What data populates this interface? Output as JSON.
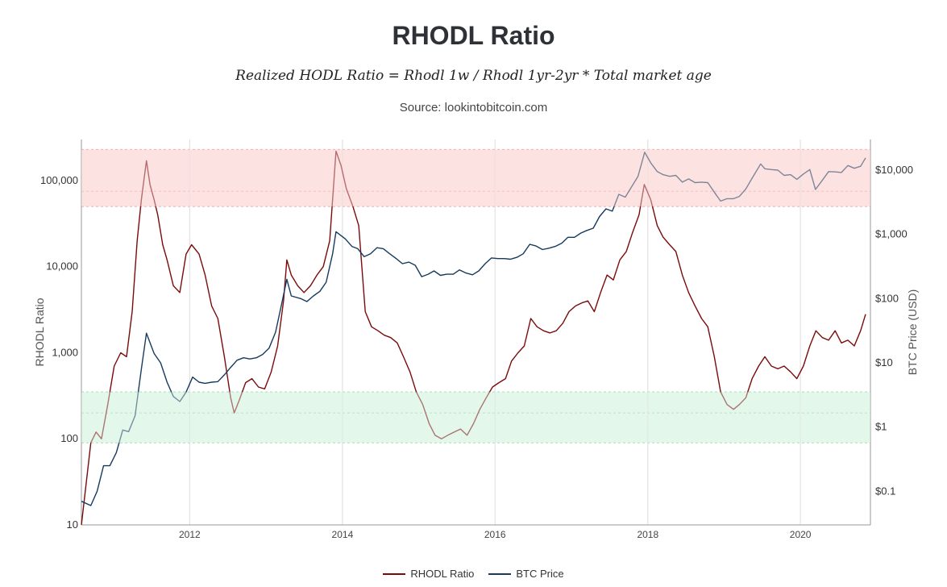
{
  "page": {
    "title": "RHODL Ratio",
    "subtitle": "Realized HODL Ratio = Rhodl 1w / Rhodl 1yr-2yr * Total market age",
    "source": "Source: lookintobitcoin.com"
  },
  "colors": {
    "rhodl": "#7a0b0b",
    "btc": "#173a5e",
    "red_band": "#fde2e2",
    "green_band": "#e4f7ec",
    "grid": "#dcdcdc"
  },
  "chart_data": {
    "type": "line",
    "x_range": [
      "2010-08-01",
      "2020-12-01"
    ],
    "x_ticks": [
      {
        "date": "2012-01-01",
        "label": "2012"
      },
      {
        "date": "2014-01-01",
        "label": "2014"
      },
      {
        "date": "2016-01-01",
        "label": "2016"
      },
      {
        "date": "2018-01-01",
        "label": "2018"
      },
      {
        "date": "2020-01-01",
        "label": "2020"
      }
    ],
    "y_left": {
      "label": "RHODL Ratio",
      "scale": "log",
      "range": [
        10,
        300000
      ],
      "ticks": [
        {
          "value": 10,
          "label": "10"
        },
        {
          "value": 100,
          "label": "100"
        },
        {
          "value": 1000,
          "label": "1,000"
        },
        {
          "value": 10000,
          "label": "10,000"
        },
        {
          "value": 100000,
          "label": "100,000"
        }
      ]
    },
    "y_right": {
      "label": "BTC Price (USD)",
      "scale": "log",
      "range": [
        0.03,
        30000
      ],
      "ticks": [
        {
          "value": 0.1,
          "label": "$0.1"
        },
        {
          "value": 1,
          "label": "$1"
        },
        {
          "value": 10,
          "label": "$10"
        },
        {
          "value": 100,
          "label": "$100"
        },
        {
          "value": 1000,
          "label": "$1,000"
        },
        {
          "value": 10000,
          "label": "$10,000"
        }
      ]
    },
    "bands": [
      {
        "name": "red",
        "from": 50000,
        "to": 230000,
        "mid": 75000
      },
      {
        "name": "green",
        "from": 90,
        "to": 350,
        "mid": 200
      }
    ],
    "legend": [
      "RHODL Ratio",
      "BTC Price"
    ],
    "series": [
      {
        "name": "RHODL Ratio",
        "axis": "left",
        "points": [
          [
            "2010-08-01",
            10
          ],
          [
            "2010-08-20",
            25
          ],
          [
            "2010-09-15",
            90
          ],
          [
            "2010-10-10",
            120
          ],
          [
            "2010-11-05",
            100
          ],
          [
            "2010-12-05",
            250
          ],
          [
            "2011-01-05",
            700
          ],
          [
            "2011-02-05",
            1000
          ],
          [
            "2011-03-05",
            900
          ],
          [
            "2011-04-01",
            3000
          ],
          [
            "2011-04-25",
            20000
          ],
          [
            "2011-05-15",
            60000
          ],
          [
            "2011-06-08",
            170000
          ],
          [
            "2011-06-25",
            90000
          ],
          [
            "2011-07-15",
            60000
          ],
          [
            "2011-08-01",
            40000
          ],
          [
            "2011-08-25",
            18000
          ],
          [
            "2011-09-15",
            12000
          ],
          [
            "2011-10-15",
            6000
          ],
          [
            "2011-11-15",
            5000
          ],
          [
            "2011-12-15",
            14000
          ],
          [
            "2012-01-10",
            18000
          ],
          [
            "2012-02-15",
            14000
          ],
          [
            "2012-03-15",
            8000
          ],
          [
            "2012-04-15",
            3500
          ],
          [
            "2012-05-15",
            2500
          ],
          [
            "2012-06-15",
            900
          ],
          [
            "2012-07-15",
            300
          ],
          [
            "2012-08-01",
            200
          ],
          [
            "2012-08-25",
            280
          ],
          [
            "2012-09-25",
            450
          ],
          [
            "2012-10-25",
            500
          ],
          [
            "2012-11-25",
            400
          ],
          [
            "2012-12-25",
            380
          ],
          [
            "2013-01-25",
            600
          ],
          [
            "2013-02-25",
            1200
          ],
          [
            "2013-03-25",
            4000
          ],
          [
            "2013-04-10",
            12000
          ],
          [
            "2013-05-01",
            8000
          ],
          [
            "2013-06-01",
            6000
          ],
          [
            "2013-07-01",
            5000
          ],
          [
            "2013-08-01",
            6000
          ],
          [
            "2013-09-01",
            8000
          ],
          [
            "2013-10-01",
            10000
          ],
          [
            "2013-11-01",
            20000
          ],
          [
            "2013-12-01",
            220000
          ],
          [
            "2013-12-25",
            150000
          ],
          [
            "2014-01-20",
            80000
          ],
          [
            "2014-02-20",
            50000
          ],
          [
            "2014-03-20",
            30000
          ],
          [
            "2014-04-20",
            3000
          ],
          [
            "2014-05-20",
            2000
          ],
          [
            "2014-06-20",
            1800
          ],
          [
            "2014-07-20",
            1600
          ],
          [
            "2014-08-20",
            1500
          ],
          [
            "2014-09-20",
            1300
          ],
          [
            "2014-10-20",
            900
          ],
          [
            "2014-11-20",
            600
          ],
          [
            "2014-12-20",
            350
          ],
          [
            "2015-01-20",
            250
          ],
          [
            "2015-02-20",
            150
          ],
          [
            "2015-03-20",
            110
          ],
          [
            "2015-04-20",
            100
          ],
          [
            "2015-05-20",
            110
          ],
          [
            "2015-06-20",
            120
          ],
          [
            "2015-07-20",
            130
          ],
          [
            "2015-08-20",
            110
          ],
          [
            "2015-09-20",
            150
          ],
          [
            "2015-10-20",
            220
          ],
          [
            "2015-11-20",
            300
          ],
          [
            "2015-12-20",
            400
          ],
          [
            "2016-01-20",
            450
          ],
          [
            "2016-02-20",
            500
          ],
          [
            "2016-03-20",
            800
          ],
          [
            "2016-04-20",
            1000
          ],
          [
            "2016-05-20",
            1200
          ],
          [
            "2016-06-20",
            2500
          ],
          [
            "2016-07-20",
            2000
          ],
          [
            "2016-08-20",
            1800
          ],
          [
            "2016-09-20",
            1700
          ],
          [
            "2016-10-20",
            1800
          ],
          [
            "2016-11-20",
            2200
          ],
          [
            "2016-12-20",
            3000
          ],
          [
            "2017-01-20",
            3500
          ],
          [
            "2017-02-20",
            3800
          ],
          [
            "2017-03-20",
            4000
          ],
          [
            "2017-04-20",
            3000
          ],
          [
            "2017-05-20",
            5000
          ],
          [
            "2017-06-20",
            8000
          ],
          [
            "2017-07-20",
            7000
          ],
          [
            "2017-08-20",
            12000
          ],
          [
            "2017-09-20",
            15000
          ],
          [
            "2017-10-20",
            25000
          ],
          [
            "2017-11-20",
            40000
          ],
          [
            "2017-12-15",
            90000
          ],
          [
            "2018-01-15",
            60000
          ],
          [
            "2018-02-15",
            30000
          ],
          [
            "2018-03-15",
            22000
          ],
          [
            "2018-04-15",
            18000
          ],
          [
            "2018-05-15",
            15000
          ],
          [
            "2018-06-15",
            8000
          ],
          [
            "2018-07-15",
            5000
          ],
          [
            "2018-08-15",
            3500
          ],
          [
            "2018-09-15",
            2500
          ],
          [
            "2018-10-15",
            2000
          ],
          [
            "2018-11-15",
            900
          ],
          [
            "2018-12-15",
            350
          ],
          [
            "2019-01-15",
            250
          ],
          [
            "2019-02-15",
            220
          ],
          [
            "2019-03-15",
            250
          ],
          [
            "2019-04-15",
            300
          ],
          [
            "2019-05-15",
            500
          ],
          [
            "2019-06-15",
            700
          ],
          [
            "2019-07-15",
            900
          ],
          [
            "2019-08-15",
            700
          ],
          [
            "2019-09-15",
            650
          ],
          [
            "2019-10-15",
            700
          ],
          [
            "2019-11-15",
            600
          ],
          [
            "2019-12-15",
            500
          ],
          [
            "2020-01-15",
            700
          ],
          [
            "2020-02-15",
            1200
          ],
          [
            "2020-03-15",
            1800
          ],
          [
            "2020-04-15",
            1500
          ],
          [
            "2020-05-15",
            1400
          ],
          [
            "2020-06-15",
            1800
          ],
          [
            "2020-07-15",
            1300
          ],
          [
            "2020-08-15",
            1400
          ],
          [
            "2020-09-15",
            1200
          ],
          [
            "2020-10-15",
            1800
          ],
          [
            "2020-11-08",
            2800
          ]
        ]
      },
      {
        "name": "BTC Price",
        "axis": "right",
        "points": [
          [
            "2010-08-01",
            0.07
          ],
          [
            "2010-09-15",
            0.06
          ],
          [
            "2010-10-15",
            0.1
          ],
          [
            "2010-11-15",
            0.25
          ],
          [
            "2010-12-15",
            0.25
          ],
          [
            "2011-01-15",
            0.4
          ],
          [
            "2011-02-15",
            0.9
          ],
          [
            "2011-03-15",
            0.85
          ],
          [
            "2011-04-15",
            1.5
          ],
          [
            "2011-05-15",
            8
          ],
          [
            "2011-06-08",
            29
          ],
          [
            "2011-07-15",
            14
          ],
          [
            "2011-08-15",
            10
          ],
          [
            "2011-09-15",
            5
          ],
          [
            "2011-10-15",
            3
          ],
          [
            "2011-11-15",
            2.5
          ],
          [
            "2011-12-15",
            3.5
          ],
          [
            "2012-01-15",
            6
          ],
          [
            "2012-02-15",
            5
          ],
          [
            "2012-03-15",
            4.8
          ],
          [
            "2012-04-15",
            5
          ],
          [
            "2012-05-15",
            5.1
          ],
          [
            "2012-06-15",
            6.5
          ],
          [
            "2012-07-15",
            8.5
          ],
          [
            "2012-08-15",
            11
          ],
          [
            "2012-09-15",
            12
          ],
          [
            "2012-10-15",
            11.5
          ],
          [
            "2012-11-15",
            12
          ],
          [
            "2012-12-15",
            13.5
          ],
          [
            "2013-01-15",
            17
          ],
          [
            "2013-02-15",
            30
          ],
          [
            "2013-03-15",
            80
          ],
          [
            "2013-04-10",
            200
          ],
          [
            "2013-05-01",
            110
          ],
          [
            "2013-06-15",
            100
          ],
          [
            "2013-07-15",
            90
          ],
          [
            "2013-08-15",
            110
          ],
          [
            "2013-09-15",
            130
          ],
          [
            "2013-10-15",
            180
          ],
          [
            "2013-11-15",
            500
          ],
          [
            "2013-12-01",
            1100
          ],
          [
            "2014-01-15",
            850
          ],
          [
            "2014-02-15",
            650
          ],
          [
            "2014-03-15",
            600
          ],
          [
            "2014-04-15",
            450
          ],
          [
            "2014-05-15",
            500
          ],
          [
            "2014-06-15",
            620
          ],
          [
            "2014-07-15",
            600
          ],
          [
            "2014-08-15",
            500
          ],
          [
            "2014-09-15",
            420
          ],
          [
            "2014-10-15",
            350
          ],
          [
            "2014-11-15",
            370
          ],
          [
            "2014-12-15",
            330
          ],
          [
            "2015-01-15",
            220
          ],
          [
            "2015-02-15",
            240
          ],
          [
            "2015-03-15",
            270
          ],
          [
            "2015-04-15",
            230
          ],
          [
            "2015-05-15",
            240
          ],
          [
            "2015-06-15",
            240
          ],
          [
            "2015-07-15",
            280
          ],
          [
            "2015-08-15",
            250
          ],
          [
            "2015-09-15",
            235
          ],
          [
            "2015-10-15",
            270
          ],
          [
            "2015-11-15",
            350
          ],
          [
            "2015-12-15",
            430
          ],
          [
            "2016-01-15",
            420
          ],
          [
            "2016-02-15",
            420
          ],
          [
            "2016-03-15",
            410
          ],
          [
            "2016-04-15",
            440
          ],
          [
            "2016-05-15",
            500
          ],
          [
            "2016-06-15",
            700
          ],
          [
            "2016-07-15",
            660
          ],
          [
            "2016-08-15",
            580
          ],
          [
            "2016-09-15",
            610
          ],
          [
            "2016-10-15",
            650
          ],
          [
            "2016-11-15",
            730
          ],
          [
            "2016-12-15",
            900
          ],
          [
            "2017-01-15",
            900
          ],
          [
            "2017-02-15",
            1050
          ],
          [
            "2017-03-15",
            1150
          ],
          [
            "2017-04-15",
            1250
          ],
          [
            "2017-05-15",
            1900
          ],
          [
            "2017-06-15",
            2500
          ],
          [
            "2017-07-15",
            2300
          ],
          [
            "2017-08-15",
            4200
          ],
          [
            "2017-09-15",
            3800
          ],
          [
            "2017-10-15",
            5500
          ],
          [
            "2017-11-15",
            8000
          ],
          [
            "2017-12-17",
            19000
          ],
          [
            "2018-01-15",
            13000
          ],
          [
            "2018-02-15",
            9500
          ],
          [
            "2018-03-15",
            8500
          ],
          [
            "2018-04-15",
            8000
          ],
          [
            "2018-05-15",
            8300
          ],
          [
            "2018-06-15",
            6500
          ],
          [
            "2018-07-15",
            7300
          ],
          [
            "2018-08-15",
            6400
          ],
          [
            "2018-09-15",
            6500
          ],
          [
            "2018-10-15",
            6400
          ],
          [
            "2018-11-20",
            4300
          ],
          [
            "2018-12-15",
            3300
          ],
          [
            "2019-01-15",
            3600
          ],
          [
            "2019-02-15",
            3600
          ],
          [
            "2019-03-15",
            3900
          ],
          [
            "2019-04-15",
            5100
          ],
          [
            "2019-05-15",
            7500
          ],
          [
            "2019-06-25",
            12500
          ],
          [
            "2019-07-15",
            10500
          ],
          [
            "2019-08-15",
            10200
          ],
          [
            "2019-09-15",
            10000
          ],
          [
            "2019-10-15",
            8300
          ],
          [
            "2019-11-15",
            8500
          ],
          [
            "2019-12-15",
            7200
          ],
          [
            "2020-01-15",
            8700
          ],
          [
            "2020-02-15",
            10200
          ],
          [
            "2020-03-13",
            5000
          ],
          [
            "2020-04-15",
            7000
          ],
          [
            "2020-05-15",
            9500
          ],
          [
            "2020-06-15",
            9400
          ],
          [
            "2020-07-15",
            9200
          ],
          [
            "2020-08-15",
            11800
          ],
          [
            "2020-09-15",
            10700
          ],
          [
            "2020-10-15",
            11500
          ],
          [
            "2020-11-08",
            15500
          ]
        ]
      }
    ]
  }
}
